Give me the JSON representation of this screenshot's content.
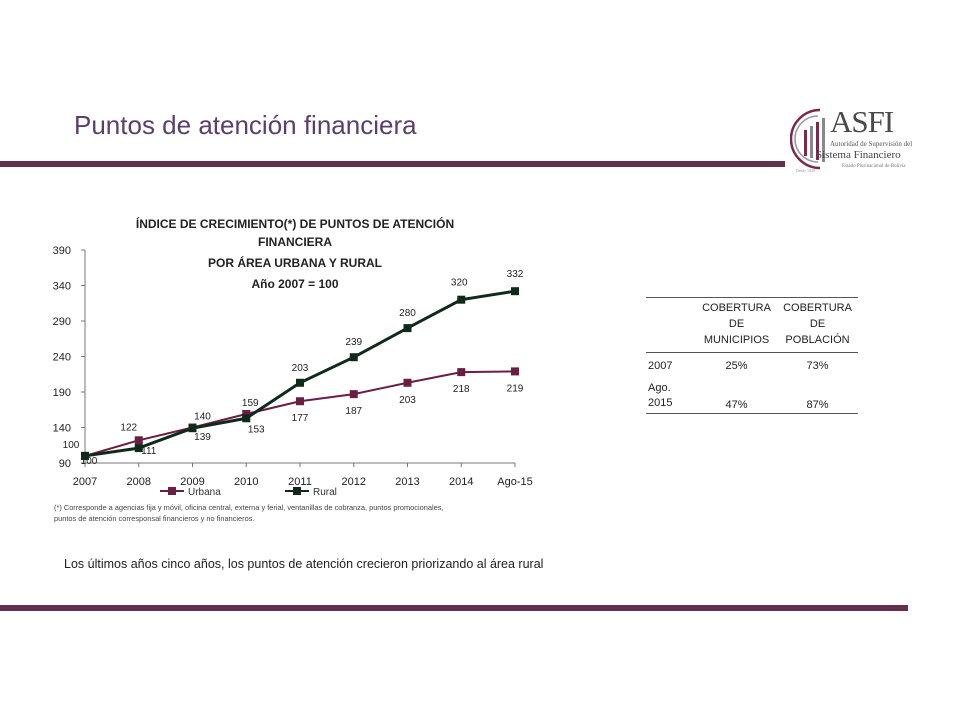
{
  "slide": {
    "title": "Puntos de atención financiera",
    "caption": "Los últimos años cinco años, los puntos de atención crecieron priorizando al área rural",
    "footnote": "(*) Corresponde a agencias fija y móvil, oficina central, externa y ferial, ventanillas de cobranza, puntos promocionales, puntos de atención corresponsal financieros y no financieros."
  },
  "logo": {
    "letters": "ASFI",
    "line1": "Autoridad de Supervisión del",
    "line2": "Sistema Financiero",
    "line3": "Estado Plurinacional de Bolivia",
    "line4": "Desde 1928",
    "colors": {
      "accent": "#7a2a4a",
      "gray": "#888888"
    }
  },
  "chart_data": {
    "type": "line",
    "title_lines": [
      "ÍNDICE DE CRECIMIENTO(*) DE PUNTOS DE ATENCIÓN",
      "FINANCIERA",
      "POR ÁREA URBANA Y RURAL",
      "Año 2007 = 100"
    ],
    "categories": [
      "2007",
      "2008",
      "2009",
      "2010",
      "2011",
      "2012",
      "2013",
      "2014",
      "Ago-15"
    ],
    "ylim": [
      90,
      390
    ],
    "yticks": [
      90,
      140,
      190,
      240,
      290,
      340,
      390
    ],
    "grid": false,
    "legend_position": "bottom",
    "series": [
      {
        "name": "Urbana",
        "color": "#6b1e43",
        "values": [
          100,
          122,
          140,
          159,
          177,
          187,
          203,
          218,
          219
        ],
        "labels": [
          "100",
          "122",
          "140",
          "159",
          "177",
          "187",
          "203",
          "218",
          "219"
        ]
      },
      {
        "name": "Rural",
        "color": "#0f2a1a",
        "values": [
          100,
          111,
          139,
          153,
          203,
          239,
          280,
          320,
          332
        ],
        "labels": [
          "100",
          "111",
          "139",
          "153",
          "203",
          "239",
          "280",
          "320",
          "332"
        ]
      }
    ]
  },
  "table": {
    "headers": [
      "",
      "COBERTURA DE MUNICIPIOS",
      "COBERTURA DE POBLACIÓN"
    ],
    "rows": [
      {
        "year": "2007",
        "municipios": "25%",
        "poblacion": "73%"
      },
      {
        "year": "Ago. 2015",
        "municipios": "47%",
        "poblacion": "87%"
      }
    ]
  }
}
